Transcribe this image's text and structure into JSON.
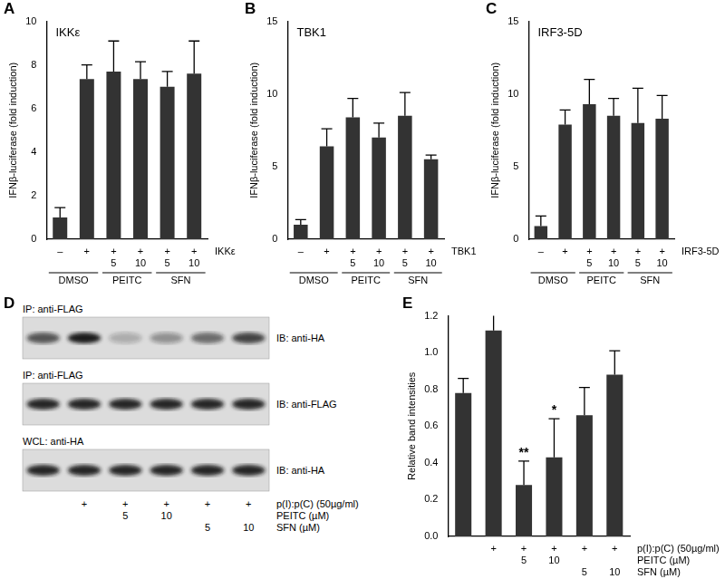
{
  "chart_data": [
    {
      "panel": "A",
      "type": "bar",
      "title": "IKKε",
      "y_label": "IFNβ-luciferase (fold induction)",
      "categories": [
        null,
        null,
        null,
        null,
        null,
        null
      ],
      "values": [
        1.0,
        7.35,
        7.7,
        7.35,
        7.0,
        7.6
      ],
      "errors": [
        0.45,
        0.65,
        1.4,
        0.8,
        0.7,
        1.5
      ],
      "color": "#333333",
      "ylim": [
        0,
        10
      ],
      "yticks": [
        0,
        2,
        4,
        6,
        8,
        10
      ],
      "grid": false,
      "x_rows": [
        {
          "label": "IKKε",
          "values": [
            "–",
            "+",
            "+",
            "+",
            "+",
            "+"
          ]
        },
        {
          "label": null,
          "values": [
            null,
            null,
            5,
            10,
            5,
            10
          ]
        }
      ],
      "groups": [
        {
          "label": "DMSO",
          "categories": [
            0,
            1
          ]
        },
        {
          "label": "PEITC",
          "categories": [
            2,
            3
          ]
        },
        {
          "label": "SFN",
          "categories": [
            4,
            5
          ]
        }
      ]
    },
    {
      "panel": "B",
      "type": "bar",
      "title": "TBK1",
      "y_label": "IFNβ-luciferase (fold induction)",
      "categories": [
        null,
        null,
        null,
        null,
        null,
        null
      ],
      "values": [
        1.0,
        6.4,
        8.4,
        7.0,
        8.5,
        5.5
      ],
      "errors": [
        0.35,
        1.2,
        1.3,
        1.0,
        1.6,
        0.3
      ],
      "color": "#333333",
      "ylim": [
        0,
        15
      ],
      "yticks": [
        0,
        5,
        10,
        15
      ],
      "grid": false,
      "x_rows": [
        {
          "label": "TBK1",
          "values": [
            "–",
            "+",
            "+",
            "+",
            "+",
            "+"
          ]
        },
        {
          "label": null,
          "values": [
            null,
            null,
            5,
            10,
            5,
            10
          ]
        }
      ],
      "groups": [
        {
          "label": "DMSO",
          "categories": [
            0,
            1
          ]
        },
        {
          "label": "PEITC",
          "categories": [
            2,
            3
          ]
        },
        {
          "label": "SFN",
          "categories": [
            4,
            5
          ]
        }
      ]
    },
    {
      "panel": "C",
      "type": "bar",
      "title": "IRF3-5D",
      "y_label": "IFNβ-luciferase (fold induction)",
      "categories": [
        null,
        null,
        null,
        null,
        null,
        null
      ],
      "values": [
        0.9,
        7.9,
        9.3,
        8.5,
        8.0,
        8.3
      ],
      "errors": [
        0.7,
        1.0,
        1.7,
        1.2,
        2.4,
        1.6
      ],
      "color": "#333333",
      "ylim": [
        0,
        15
      ],
      "yticks": [
        0,
        5,
        10,
        15
      ],
      "grid": false,
      "x_rows": [
        {
          "label": "IRF3-5D",
          "values": [
            "–",
            "+",
            "+",
            "+",
            "+",
            "+"
          ]
        },
        {
          "label": null,
          "values": [
            null,
            null,
            5,
            10,
            5,
            10
          ]
        }
      ],
      "groups": [
        {
          "label": "DMSO",
          "categories": [
            0,
            1
          ]
        },
        {
          "label": "PEITC",
          "categories": [
            2,
            3
          ]
        },
        {
          "label": "SFN",
          "categories": [
            4,
            5
          ]
        }
      ]
    },
    {
      "panel": "E",
      "type": "bar",
      "y_label": "Relative band intensities",
      "categories": [
        null,
        null,
        null,
        null,
        null,
        null
      ],
      "values": [
        0.78,
        1.12,
        0.28,
        0.43,
        0.66,
        0.88
      ],
      "errors": [
        0.08,
        0.13,
        0.13,
        0.21,
        0.15,
        0.13
      ],
      "value_annotations": [
        null,
        null,
        "**",
        "*",
        null,
        null
      ],
      "color": "#333333",
      "ylim": [
        0,
        1.2
      ],
      "yticks": [
        {
          "value": 0,
          "label": "0.0"
        },
        0.2,
        0.4,
        0.6,
        0.8,
        {
          "value": 1,
          "label": "1.0"
        },
        1.2
      ],
      "grid": false,
      "x_rows": [
        {
          "label": "p(I):p(C) (50µg/ml)",
          "values": [
            null,
            "+",
            "+",
            "+",
            "+",
            "+"
          ]
        },
        {
          "label": "PEITC (µM)",
          "values": [
            null,
            null,
            5,
            10,
            null,
            null
          ]
        },
        {
          "label": "SFN (µM)",
          "values": [
            null,
            null,
            null,
            null,
            5,
            10
          ]
        }
      ]
    }
  ],
  "blot": {
    "panel": "D",
    "blots": [
      {
        "ip": "IP: anti-FLAG",
        "ib": "IB: anti-HA"
      },
      {
        "ip": "IP: anti-FLAG",
        "ib": "IB: anti-FLAG"
      },
      {
        "ip": "WCL: anti-HA",
        "ib": "IB: anti-HA"
      }
    ],
    "x_rows": [
      {
        "label": "p(I):p(C) (50µg/ml)",
        "values": [
          null,
          "+",
          "+",
          "+",
          "+",
          "+"
        ]
      },
      {
        "label": "PEITC (µM)",
        "values": [
          null,
          null,
          5,
          10,
          null,
          null
        ]
      },
      {
        "label": "SFN (µM)",
        "values": [
          null,
          null,
          null,
          null,
          5,
          10
        ]
      }
    ]
  }
}
